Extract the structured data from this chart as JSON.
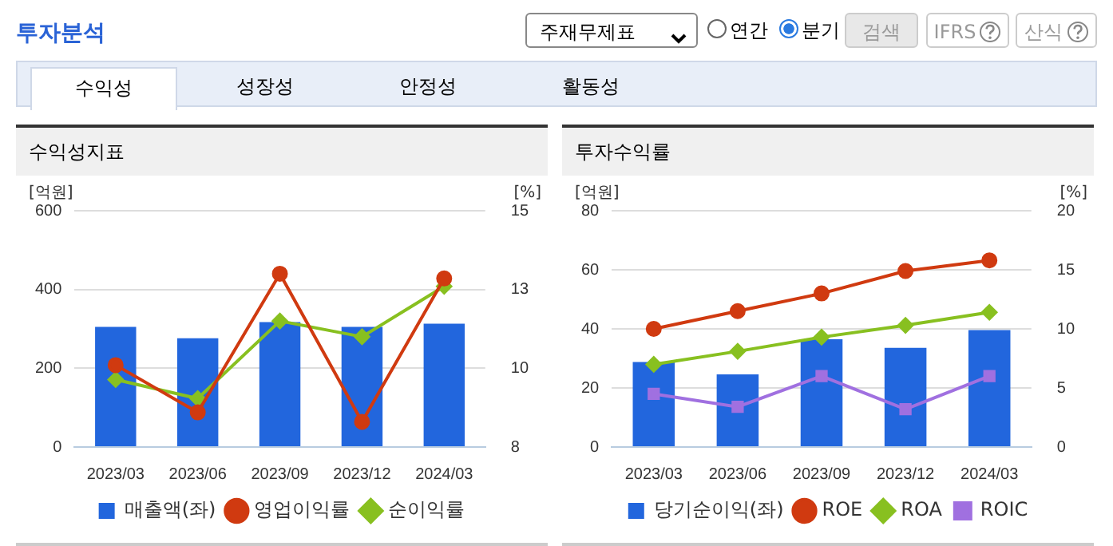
{
  "chart_data": [
    {
      "type": "other",
      "title": "투자분석",
      "annotations": [
        "주재무제표",
        "연간",
        "분기",
        "검색",
        "IFRS",
        "산식",
        "수익성",
        "성장성",
        "안정성",
        "활동성"
      ]
    },
    {
      "type": "bar",
      "title": "수익성지표",
      "ylabel": "[억원]",
      "y2label": "[%]",
      "categories": [
        "2023/03",
        "2023/06",
        "2023/09",
        "2023/12",
        "2024/03"
      ],
      "series": [
        {
          "name": "매출액(좌)",
          "type": "bar",
          "color": "#2266dd",
          "values": [
            305,
            276,
            317,
            305,
            313
          ]
        },
        {
          "name": "영업이익률",
          "type": "line",
          "axis": "y2",
          "marker": "circle",
          "color": "#d03a10",
          "values": [
            10.1,
            8.6,
            13.0,
            8.3,
            12.85
          ]
        },
        {
          "name": "순이익률",
          "type": "line",
          "axis": "y2",
          "marker": "diamond",
          "color": "#88c020",
          "values": [
            9.64,
            9.04,
            11.5,
            11.0,
            12.6
          ]
        }
      ],
      "ylim": [
        0,
        600
      ],
      "yticks": [
        0,
        200,
        400,
        600
      ],
      "y2lim": [
        7.5,
        15
      ],
      "y2ticks": [
        {
          "value": 7.5,
          "label": "8"
        },
        10,
        {
          "value": 12.5,
          "label": "13"
        },
        15
      ],
      "grid": "y",
      "legend": "bottom"
    },
    {
      "type": "bar",
      "title": "투자수익률",
      "ylabel": "[억원]",
      "y2label": "[%]",
      "categories": [
        "2023/03",
        "2023/06",
        "2023/09",
        "2023/12",
        "2024/03"
      ],
      "series": [
        {
          "name": "당기순이익(좌)",
          "type": "bar",
          "color": "#2266dd",
          "values": [
            28.8,
            24.6,
            36.5,
            33.6,
            39.6
          ]
        },
        {
          "name": "ROE",
          "type": "line",
          "axis": "y2",
          "marker": "circle",
          "color": "#d03a10",
          "values": [
            10.0,
            11.5,
            13.0,
            14.9,
            15.8
          ]
        },
        {
          "name": "ROA",
          "type": "line",
          "axis": "y2",
          "marker": "diamond",
          "color": "#88c020",
          "values": [
            7.0,
            8.1,
            9.3,
            10.3,
            11.4
          ]
        },
        {
          "name": "ROIC",
          "type": "line",
          "axis": "y2",
          "marker": "square",
          "color": "#a070e0",
          "values": [
            4.5,
            3.4,
            6.0,
            3.2,
            6.0
          ]
        }
      ],
      "ylim": [
        0,
        80
      ],
      "yticks": [
        0,
        20,
        40,
        60,
        80
      ],
      "y2lim": [
        0,
        20
      ],
      "y2ticks": [
        0,
        5,
        10,
        15,
        20
      ],
      "grid": "y",
      "legend": "bottom"
    }
  ]
}
